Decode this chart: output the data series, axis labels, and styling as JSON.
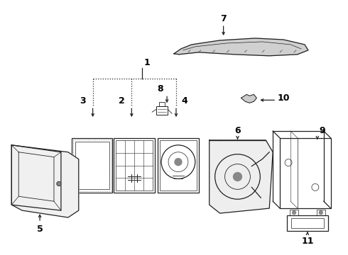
{
  "background_color": "#ffffff",
  "line_color": "#222222",
  "text_color": "#000000",
  "fig_w": 4.9,
  "fig_h": 3.6,
  "dpi": 100
}
